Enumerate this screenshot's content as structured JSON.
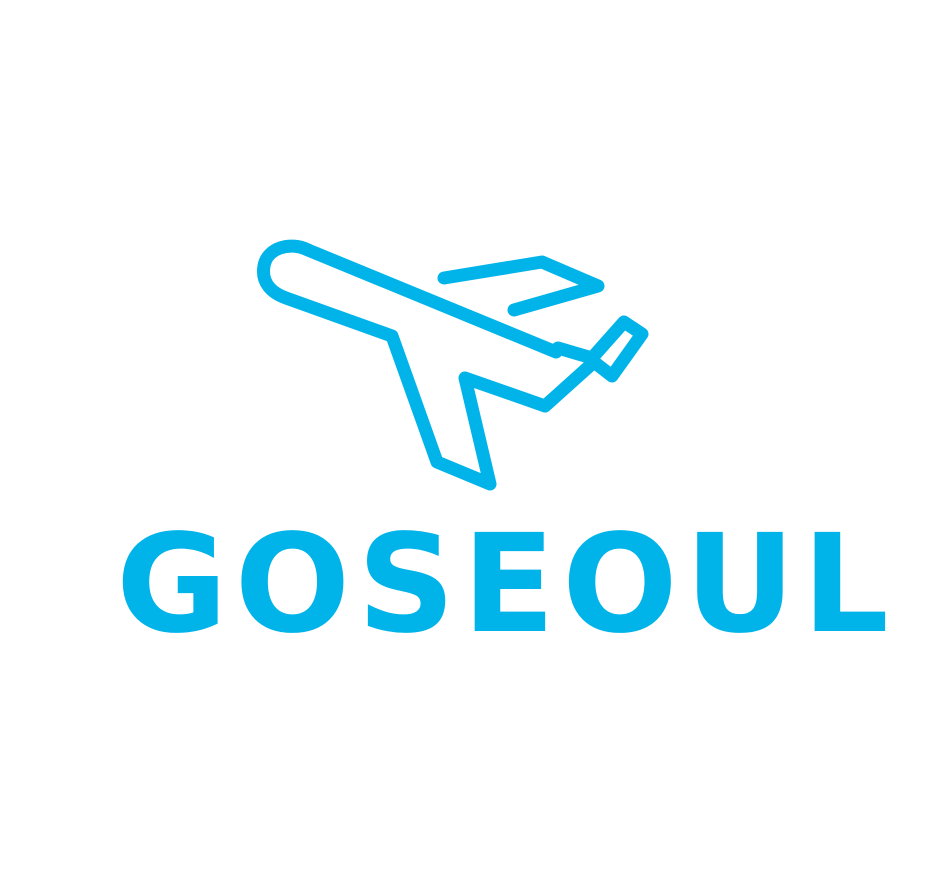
{
  "brand": {
    "name": "GOSEOUL",
    "accent_color": "#00B4EA",
    "icon": "airplane-icon"
  }
}
